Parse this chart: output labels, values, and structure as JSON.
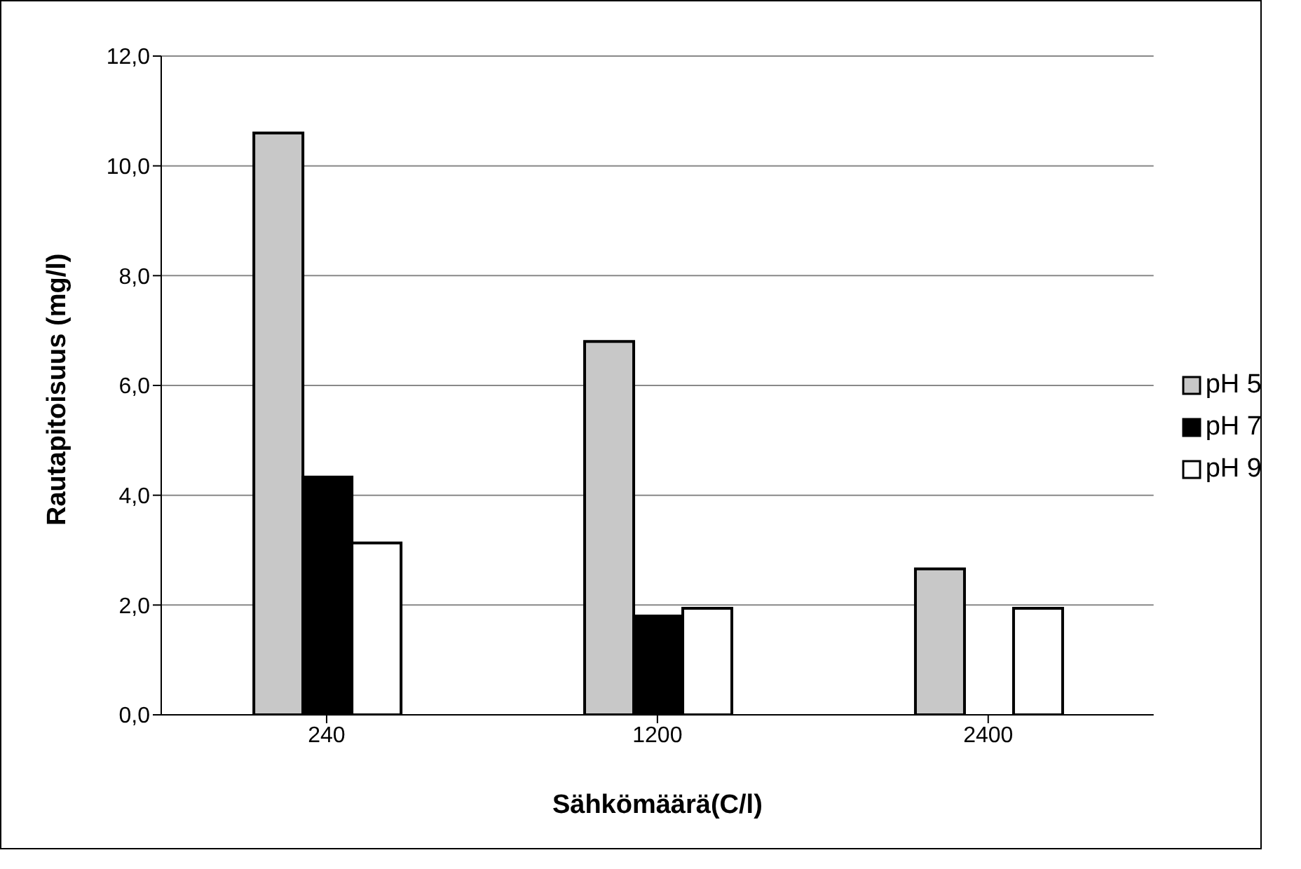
{
  "chart_data": {
    "type": "bar",
    "xlabel": "Sähkömäärä(C/l)",
    "ylabel": "Rautapitoisuus (mg/l)",
    "categories": [
      "240",
      "1200",
      "2400"
    ],
    "series": [
      {
        "name": "pH 5",
        "color": "#c8c8c8",
        "values": [
          10.6,
          6.8,
          2.66
        ]
      },
      {
        "name": "pH 7",
        "color": "#000000",
        "values": [
          4.33,
          1.8,
          0.0
        ]
      },
      {
        "name": "pH 9",
        "color": "#ffffff",
        "values": [
          3.13,
          1.94,
          1.94
        ]
      }
    ],
    "ylim": [
      0,
      12
    ],
    "yticks": [
      {
        "value": 0,
        "label": "0,0"
      },
      {
        "value": 2,
        "label": "2,0"
      },
      {
        "value": 4,
        "label": "4,0"
      },
      {
        "value": 6,
        "label": "6,0"
      },
      {
        "value": 8,
        "label": "8,0"
      },
      {
        "value": 10,
        "label": "10,0"
      },
      {
        "value": 12,
        "label": "12,0"
      }
    ],
    "grid": "y",
    "legend": "right"
  }
}
